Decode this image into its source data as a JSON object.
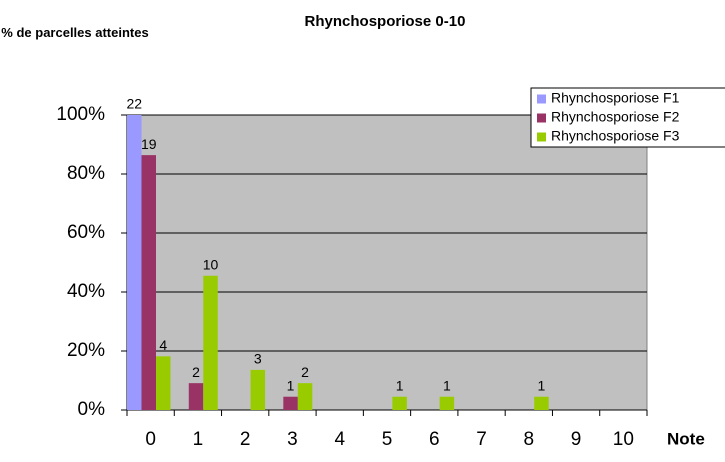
{
  "chart_data": {
    "type": "bar",
    "title": "Rhynchosporiose 0-10",
    "y_label": "% de parcelles atteintes",
    "x_label": "Note",
    "categories": [
      "0",
      "1",
      "2",
      "3",
      "4",
      "5",
      "6",
      "7",
      "8",
      "9",
      "10"
    ],
    "series": [
      {
        "name": "Rhynchosporiose F1",
        "color": "#9999ff",
        "values": [
          100,
          0,
          0,
          0,
          0,
          0,
          0,
          0,
          0,
          0,
          0
        ],
        "value_labels": [
          "22",
          null,
          null,
          null,
          null,
          null,
          null,
          null,
          null,
          null,
          null
        ]
      },
      {
        "name": "Rhynchosporiose F2",
        "color": "#993366",
        "values": [
          86.4,
          9.1,
          0,
          4.5,
          0,
          0,
          0,
          0,
          0,
          0,
          0
        ],
        "value_labels": [
          "19",
          "2",
          null,
          "1",
          null,
          null,
          null,
          null,
          null,
          null,
          null
        ]
      },
      {
        "name": "Rhynchosporiose F3",
        "color": "#99cc00",
        "values": [
          18.2,
          45.5,
          13.6,
          9.1,
          0,
          4.5,
          4.5,
          0,
          4.5,
          0,
          0
        ],
        "value_labels": [
          "4",
          "10",
          "3",
          "2",
          null,
          "1",
          "1",
          null,
          "1",
          null,
          null
        ]
      }
    ],
    "ylim": [
      0,
      100
    ],
    "yticks": [
      {
        "value": 0,
        "label": "0%"
      },
      {
        "value": 20,
        "label": "20%"
      },
      {
        "value": 40,
        "label": "40%"
      },
      {
        "value": 60,
        "label": "60%"
      },
      {
        "value": 80,
        "label": "80%"
      },
      {
        "value": 100,
        "label": "100%"
      }
    ],
    "grid": true,
    "legend": "top-right",
    "background": "#c0c0c0"
  }
}
